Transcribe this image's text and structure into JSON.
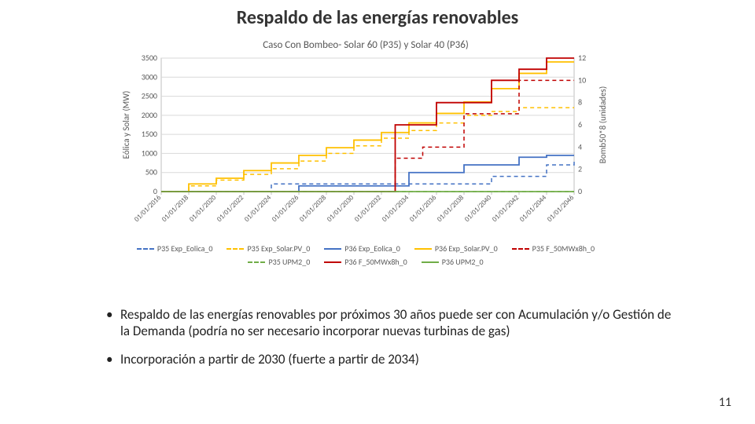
{
  "title": "Respaldo de las energías renovables",
  "page_number": "11",
  "bullets": [
    "Respaldo de las energías renovables por próximos 30 años puede ser con Acumulación y/o Gestión de la Demanda (podría no ser necesario incorporar nuevas turbinas de gas)",
    "Incorporación a partir de 2030 (fuerte a partir de 2034)"
  ],
  "chart": {
    "type": "step-line",
    "title": "Caso Con Bombeo- Solar 60 (P35) y Solar 40 (P36)",
    "title_fontsize": 13,
    "title_color": "#595959",
    "background_color": "#ffffff",
    "grid_color": "#d9d9d9",
    "axis_color": "#bfbfbf",
    "tick_font_color": "#595959",
    "tick_fontsize": 10,
    "label_fontsize": 11,
    "x": {
      "labels": [
        "01/01/2016",
        "01/01/2018",
        "01/01/2020",
        "01/01/2022",
        "01/01/2024",
        "01/01/2026",
        "01/01/2028",
        "01/01/2030",
        "01/01/2032",
        "01/01/2034",
        "01/01/2036",
        "01/01/2038",
        "01/01/2040",
        "01/01/2042",
        "01/01/2044",
        "01/01/2046"
      ],
      "rotation_deg": -45
    },
    "y_left": {
      "label": "Eólica y Solar (MW)",
      "min": 0,
      "max": 3500,
      "ticks": [
        0,
        500,
        1000,
        1500,
        2000,
        2500,
        3000,
        3500
      ]
    },
    "y_right": {
      "label": "Bomb50*8 (unidades)",
      "min": 0,
      "max": 12,
      "ticks": [
        0,
        2,
        4,
        6,
        8,
        10,
        12
      ]
    },
    "series": [
      {
        "name": "P35 Exp_Eolica_0",
        "color": "#4472c4",
        "dash": "5,4",
        "width": 1.5,
        "axis": "left",
        "xy": [
          [
            0,
            0
          ],
          [
            4,
            0
          ],
          [
            4,
            200
          ],
          [
            12,
            200
          ],
          [
            12,
            400
          ],
          [
            14,
            400
          ],
          [
            14,
            700
          ],
          [
            15,
            700
          ],
          [
            15,
            850
          ],
          [
            15,
            850
          ]
        ]
      },
      {
        "name": "P35 Exp_Solar.PV_0",
        "color": "#ffc000",
        "dash": "5,4",
        "width": 1.5,
        "axis": "left",
        "xy": [
          [
            0,
            0
          ],
          [
            1,
            0
          ],
          [
            1,
            150
          ],
          [
            2,
            150
          ],
          [
            2,
            300
          ],
          [
            3,
            300
          ],
          [
            3,
            450
          ],
          [
            4,
            450
          ],
          [
            4,
            600
          ],
          [
            5,
            600
          ],
          [
            5,
            800
          ],
          [
            6,
            800
          ],
          [
            6,
            1000
          ],
          [
            7,
            1000
          ],
          [
            7,
            1200
          ],
          [
            8,
            1200
          ],
          [
            8,
            1400
          ],
          [
            9,
            1400
          ],
          [
            9,
            1600
          ],
          [
            10,
            1600
          ],
          [
            10,
            1800
          ],
          [
            11,
            1800
          ],
          [
            11,
            2000
          ],
          [
            12,
            2000
          ],
          [
            12,
            2100
          ],
          [
            13,
            2100
          ],
          [
            13,
            2200
          ],
          [
            15,
            2200
          ]
        ]
      },
      {
        "name": "P36 Exp_Eolica_0",
        "color": "#4472c4",
        "dash": "none",
        "width": 1.8,
        "axis": "left",
        "xy": [
          [
            0,
            0
          ],
          [
            5,
            0
          ],
          [
            5,
            150
          ],
          [
            9,
            150
          ],
          [
            9,
            500
          ],
          [
            11,
            500
          ],
          [
            11,
            700
          ],
          [
            13,
            700
          ],
          [
            13,
            900
          ],
          [
            14,
            900
          ],
          [
            14,
            950
          ],
          [
            15,
            950
          ]
        ]
      },
      {
        "name": "P36 Exp_Solar.PV_0",
        "color": "#ffc000",
        "dash": "none",
        "width": 1.8,
        "axis": "left",
        "xy": [
          [
            0,
            0
          ],
          [
            1,
            0
          ],
          [
            1,
            200
          ],
          [
            2,
            200
          ],
          [
            2,
            350
          ],
          [
            3,
            350
          ],
          [
            3,
            550
          ],
          [
            4,
            550
          ],
          [
            4,
            750
          ],
          [
            5,
            750
          ],
          [
            5,
            950
          ],
          [
            6,
            950
          ],
          [
            6,
            1150
          ],
          [
            7,
            1150
          ],
          [
            7,
            1350
          ],
          [
            8,
            1350
          ],
          [
            8,
            1550
          ],
          [
            9,
            1550
          ],
          [
            9,
            1800
          ],
          [
            10,
            1800
          ],
          [
            10,
            2050
          ],
          [
            11,
            2050
          ],
          [
            11,
            2350
          ],
          [
            12,
            2350
          ],
          [
            12,
            2700
          ],
          [
            13,
            2700
          ],
          [
            13,
            3100
          ],
          [
            14,
            3100
          ],
          [
            14,
            3400
          ],
          [
            15,
            3400
          ]
        ]
      },
      {
        "name": "P35 F_50MWx8h_0",
        "color": "#c00000",
        "dash": "5,4",
        "width": 1.5,
        "axis": "right",
        "xy": [
          [
            0,
            0
          ],
          [
            8.5,
            0
          ],
          [
            8.5,
            3
          ],
          [
            9.5,
            3
          ],
          [
            9.5,
            4
          ],
          [
            11,
            4
          ],
          [
            11,
            7
          ],
          [
            13,
            7
          ],
          [
            13,
            10
          ],
          [
            15,
            10
          ]
        ]
      },
      {
        "name": "P35 UPM2_0",
        "color": "#70ad47",
        "dash": "5,4",
        "width": 1.5,
        "axis": "left",
        "xy": [
          [
            0,
            0
          ],
          [
            15,
            0
          ]
        ]
      },
      {
        "name": "P36 F_50MWx8h_0",
        "color": "#c00000",
        "dash": "none",
        "width": 1.8,
        "axis": "right",
        "xy": [
          [
            0,
            0
          ],
          [
            8.5,
            0
          ],
          [
            8.5,
            6
          ],
          [
            10,
            6
          ],
          [
            10,
            8
          ],
          [
            12,
            8
          ],
          [
            12,
            10
          ],
          [
            13,
            10
          ],
          [
            13,
            11
          ],
          [
            14,
            11
          ],
          [
            14,
            12
          ],
          [
            15,
            12
          ]
        ]
      },
      {
        "name": "P36 UPM2_0",
        "color": "#70ad47",
        "dash": "none",
        "width": 1.8,
        "axis": "left",
        "xy": [
          [
            0,
            0
          ],
          [
            15,
            0
          ]
        ]
      }
    ],
    "legend_order": [
      "P35 Exp_Eolica_0",
      "P35 Exp_Solar.PV_0",
      "P36 Exp_Eolica_0",
      "P36 Exp_Solar.PV_0",
      "P35 F_50MWx8h_0",
      "P35 UPM2_0",
      "P36 F_50MWx8h_0",
      "P36 UPM2_0"
    ]
  }
}
